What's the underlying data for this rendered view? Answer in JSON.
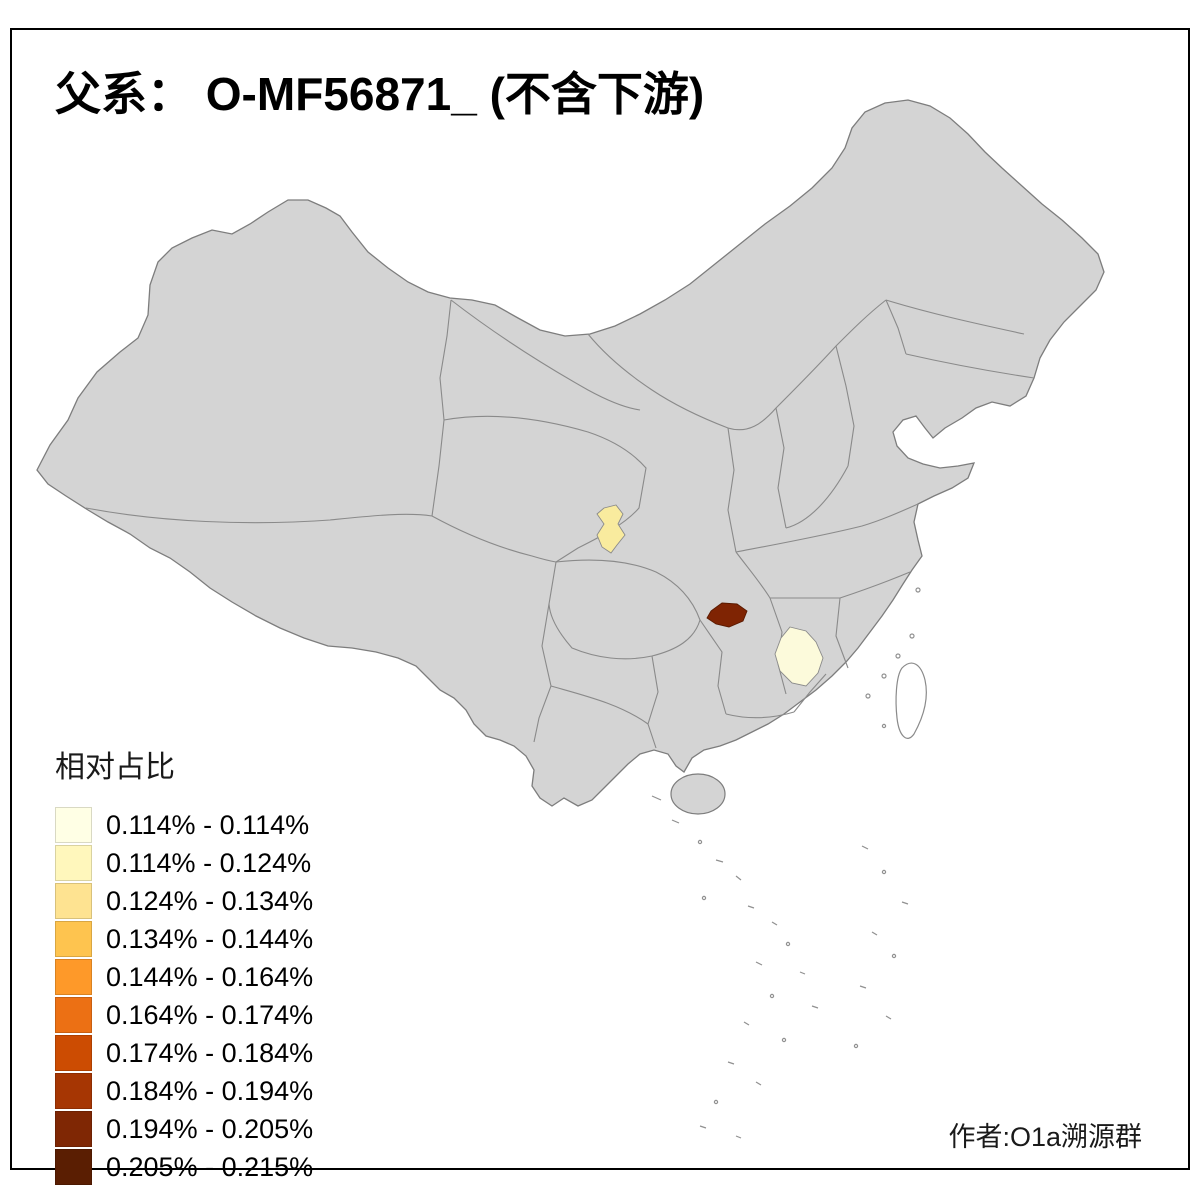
{
  "title": "父系： O-MF56871_ (不含下游)",
  "author": "作者:O1a溯源群",
  "legend": {
    "title": "相对占比",
    "classes": [
      {
        "color": "#FFFFE5",
        "label": "0.114% - 0.114%"
      },
      {
        "color": "#FFF7BC",
        "label": "0.114% - 0.124%"
      },
      {
        "color": "#FEE391",
        "label": "0.124% - 0.134%"
      },
      {
        "color": "#FEC44F",
        "label": "0.134% - 0.144%"
      },
      {
        "color": "#FE9929",
        "label": "0.144% - 0.164%"
      },
      {
        "color": "#EC7014",
        "label": "0.164% - 0.174%"
      },
      {
        "color": "#CC4C02",
        "label": "0.174% - 0.184%"
      },
      {
        "color": "#A63603",
        "label": "0.184% - 0.194%"
      },
      {
        "color": "#7F2704",
        "label": "0.194% - 0.205%"
      },
      {
        "color": "#5A1E02",
        "label": "0.205% - 0.215%"
      }
    ]
  },
  "map": {
    "base_fill": "#d4d4d4",
    "outline_color": "#7d7d7d",
    "background": "#ffffff",
    "highlights": [
      {
        "id": "highlight-region-yellow",
        "color": "#f9eb9e",
        "legend_class": "0.114% - 0.124%",
        "approx_location": "central-west China"
      },
      {
        "id": "highlight-region-dark",
        "color": "#7f2403",
        "legend_class": "0.205% - 0.215%",
        "approx_location": "south-central China"
      },
      {
        "id": "highlight-region-pale",
        "color": "#fcfadb",
        "legend_class": "0.114% - 0.114%",
        "approx_location": "southeast-central China"
      }
    ]
  },
  "chart_data": {
    "type": "heatmap",
    "subtype": "choropleth-map-of-china",
    "title": "父系： O-MF56871_ (不含下游)",
    "legend_title": "相对占比",
    "value_unit": "%",
    "value_range": [
      0.114,
      0.215
    ],
    "classes": [
      "0.114% - 0.114%",
      "0.114% - 0.124%",
      "0.124% - 0.134%",
      "0.134% - 0.144%",
      "0.144% - 0.164%",
      "0.164% - 0.174%",
      "0.174% - 0.184%",
      "0.184% - 0.194%",
      "0.194% - 0.205%",
      "0.205% - 0.215%"
    ],
    "palette": [
      "#FFFFE5",
      "#FFF7BC",
      "#FEE391",
      "#FEC44F",
      "#FE9929",
      "#EC7014",
      "#CC4C02",
      "#A63603",
      "#7F2704",
      "#5A1E02"
    ],
    "regions": [
      {
        "approx_location": "central-west China (small district)",
        "approx_value": "0.114% - 0.124%"
      },
      {
        "approx_location": "south-central China (small district)",
        "approx_value": "0.205% - 0.215%"
      },
      {
        "approx_location": "southeast-central China (small district)",
        "approx_value": "0.114% - 0.114%"
      }
    ],
    "legend_position": "bottom-left",
    "notes": "All other districts shown in neutral gray (no value)"
  }
}
